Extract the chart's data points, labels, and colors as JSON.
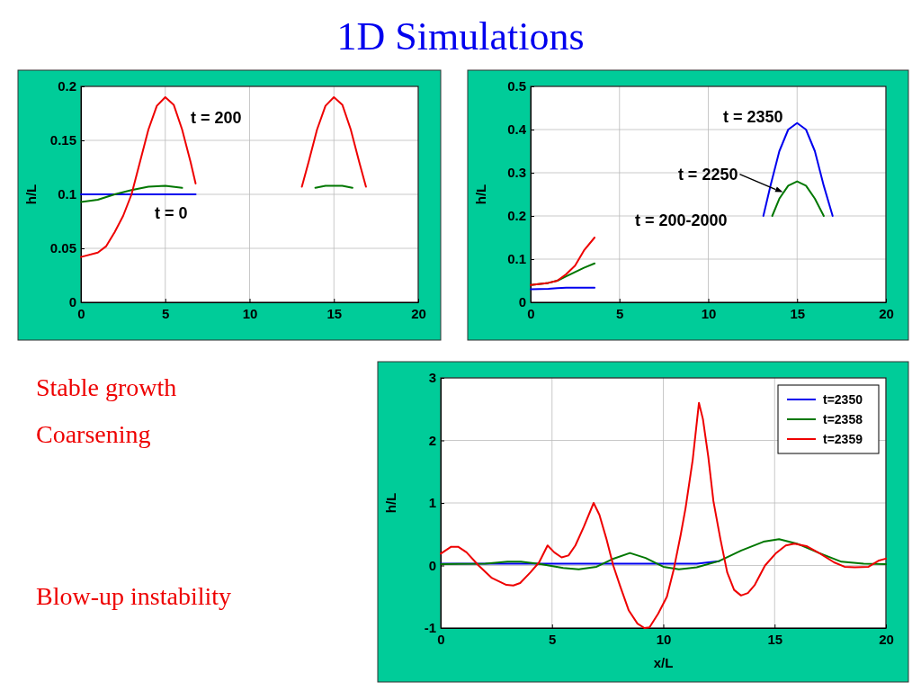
{
  "chart_data": [
    {
      "type": "line",
      "title": "1D Simulations",
      "ylabel": "h/L",
      "xlim": [
        0,
        20
      ],
      "ylim": [
        0,
        0.2
      ],
      "xticks": [
        0,
        5,
        10,
        15,
        20
      ],
      "yticks": [
        0,
        0.05,
        0.1,
        0.15,
        0.2
      ],
      "grid": true,
      "series": [
        {
          "color": "#0000ee",
          "x": [
            0,
            2,
            4,
            6,
            6.8
          ],
          "values": [
            0.1,
            0.1,
            0.1,
            0.1,
            0.1
          ]
        },
        {
          "color": "#007700",
          "x": [
            0,
            1,
            2,
            3,
            4,
            5,
            6,
            6.3,
            13.9,
            14.5,
            15,
            15.5,
            16.1
          ],
          "values": [
            0.093,
            0.095,
            0.1,
            0.104,
            0.107,
            0.108,
            0.106,
            null,
            0.106,
            0.108,
            0.108,
            0.108,
            0.106
          ]
        },
        {
          "color": "#ee0000",
          "x": [
            0,
            1,
            1.5,
            2,
            2.5,
            3,
            3.5,
            4,
            4.5,
            5,
            5.5,
            6,
            6.5,
            6.8,
            10,
            13.1,
            13.5,
            14,
            14.5,
            15,
            15.5,
            16,
            16.5,
            16.9
          ],
          "values": [
            0.042,
            0.046,
            0.052,
            0.065,
            0.08,
            0.1,
            0.13,
            0.16,
            0.182,
            0.19,
            0.183,
            0.16,
            0.13,
            0.11,
            null,
            0.107,
            0.13,
            0.16,
            0.182,
            0.19,
            0.183,
            0.16,
            0.13,
            0.107
          ]
        }
      ],
      "annotations": [
        "t = 200",
        "t = 0",
        "Stable growth",
        "Coarsening"
      ]
    },
    {
      "type": "line",
      "ylabel": "h/L",
      "xlim": [
        0,
        20
      ],
      "ylim": [
        0,
        0.5
      ],
      "xticks": [
        0,
        5,
        10,
        15,
        20
      ],
      "yticks": [
        0,
        0.1,
        0.2,
        0.3,
        0.4,
        0.5
      ],
      "grid": true,
      "series": [
        {
          "color": "#0000ee",
          "x": [
            0,
            1,
            1.5,
            2,
            3,
            3.6,
            8,
            13.1,
            13.5,
            14,
            14.5,
            15,
            15.5,
            16,
            16.5,
            17
          ],
          "values": [
            0.03,
            0.031,
            0.033,
            0.034,
            0.034,
            0.034,
            null,
            0.2,
            0.27,
            0.35,
            0.4,
            0.415,
            0.4,
            0.35,
            0.27,
            0.2
          ]
        },
        {
          "color": "#007700",
          "x": [
            0,
            1,
            1.5,
            2,
            2.5,
            3,
            3.6,
            8,
            13.6,
            14,
            14.5,
            15,
            15.5,
            16,
            16.5
          ],
          "values": [
            0.04,
            0.045,
            0.05,
            0.06,
            0.07,
            0.08,
            0.09,
            null,
            0.2,
            0.24,
            0.27,
            0.28,
            0.27,
            0.24,
            0.2
          ]
        },
        {
          "color": "#ee0000",
          "x": [
            0,
            1,
            1.5,
            2,
            2.5,
            3,
            3.6
          ],
          "values": [
            0.04,
            0.045,
            0.05,
            0.065,
            0.085,
            0.12,
            0.15
          ]
        }
      ],
      "annotations": [
        "t = 2350",
        {
          "text": "t = 2250",
          "x": 14.2,
          "y": 0.255
        },
        "t = 200-2000"
      ]
    },
    {
      "type": "line",
      "xlabel": "x/L",
      "ylabel": "h/L",
      "xlim": [
        0,
        20
      ],
      "ylim": [
        -1,
        3
      ],
      "xticks": [
        0,
        5,
        10,
        15,
        20
      ],
      "yticks": [
        -1,
        0,
        1,
        2,
        3
      ],
      "grid": true,
      "legend": "top right",
      "series": [
        {
          "name": "t=2350",
          "color": "#0000ee",
          "x": [
            0,
            2,
            4,
            6,
            8,
            10,
            11.5,
            12.5
          ],
          "values": [
            0.03,
            0.03,
            0.03,
            0.03,
            0.03,
            0.03,
            0.03,
            0.07
          ]
        },
        {
          "name": "t=2358",
          "color": "#007700",
          "x": [
            0,
            2,
            3,
            3.6,
            4.5,
            5.5,
            6.2,
            7,
            7.7,
            8.5,
            9.2,
            10,
            10.7,
            11.5,
            12.5,
            13.5,
            14.5,
            15.2,
            16,
            17,
            18,
            19,
            20
          ],
          "values": [
            0.02,
            0.03,
            0.06,
            0.06,
            0.02,
            -0.04,
            -0.06,
            -0.02,
            0.1,
            0.2,
            0.12,
            -0.02,
            -0.06,
            -0.03,
            0.07,
            0.24,
            0.38,
            0.42,
            0.35,
            0.2,
            0.06,
            0.03,
            0.02
          ]
        },
        {
          "name": "t=2359",
          "color": "#ee0000",
          "x": [
            0,
            0.47,
            0.78,
            1.16,
            1.7,
            2.3,
            2.95,
            3.26,
            3.57,
            4.03,
            4.42,
            4.8,
            5.1,
            5.43,
            5.74,
            6.05,
            6.43,
            6.87,
            7.13,
            7.44,
            7.75,
            8.06,
            8.45,
            8.84,
            9.15,
            9.38,
            9.77,
            10.16,
            10.47,
            10.78,
            11,
            11.32,
            11.6,
            11.78,
            12.02,
            12.25,
            12.56,
            12.87,
            13.18,
            13.49,
            13.8,
            14.11,
            14.57,
            15.04,
            15.5,
            15.89,
            16.43,
            17.05,
            17.67,
            18.14,
            18.6,
            19.22,
            19.69,
            20
          ],
          "values": [
            0.19,
            0.3,
            0.3,
            0.21,
            0,
            -0.2,
            -0.31,
            -0.32,
            -0.28,
            -0.11,
            0.05,
            0.32,
            0.21,
            0.13,
            0.16,
            0.32,
            0.62,
            1,
            0.81,
            0.43,
            0,
            -0.33,
            -0.72,
            -0.93,
            -1,
            -0.99,
            -0.77,
            -0.5,
            -0.06,
            0.49,
            0.92,
            1.69,
            2.6,
            2.34,
            1.74,
            1.03,
            0.43,
            -0.11,
            -0.39,
            -0.48,
            -0.44,
            -0.31,
            0,
            0.19,
            0.32,
            0.35,
            0.31,
            0.19,
            0.05,
            -0.02,
            -0.03,
            -0.02,
            0.08,
            0.11
          ]
        }
      ],
      "annotations": [
        "Blow-up instability"
      ]
    }
  ]
}
